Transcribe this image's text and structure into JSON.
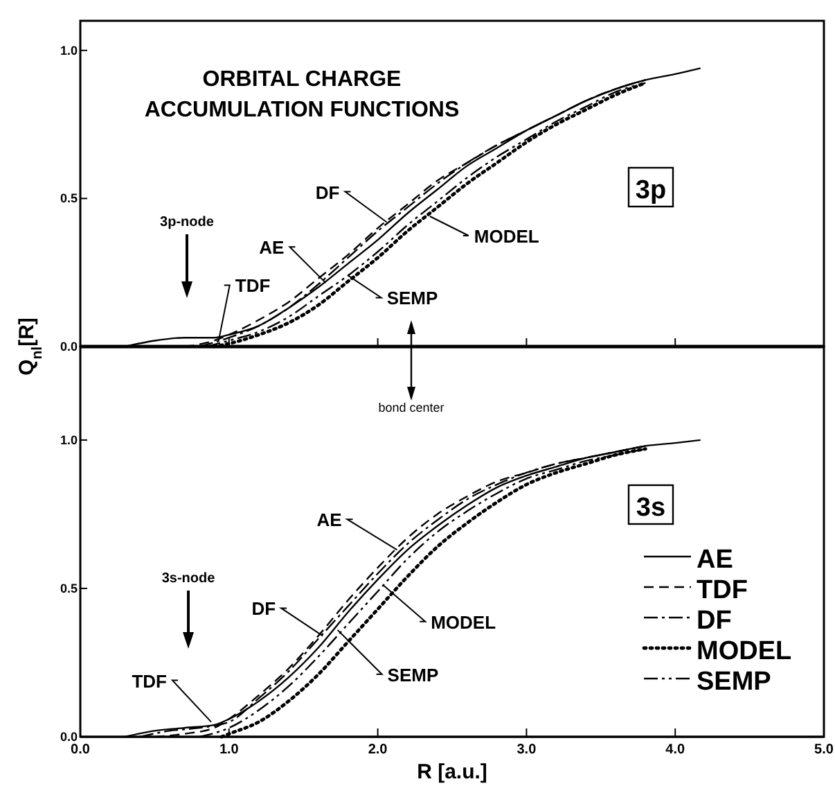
{
  "chart_data": [
    {
      "type": "line",
      "title": "ORBITAL CHARGE ACCUMULATION FUNCTIONS",
      "ylabel": "Q$_{nl}$[R]",
      "xlim": [
        0,
        5
      ],
      "ylim": [
        0,
        1.1
      ],
      "xticks": [
        {
          "value": 0,
          "label": null
        },
        {
          "value": 1,
          "label": null
        },
        {
          "value": 2,
          "label": null
        },
        {
          "value": 3,
          "label": null
        },
        {
          "value": 4,
          "label": null
        },
        {
          "value": 5,
          "label": null
        }
      ],
      "yticks": [
        {
          "value": 0,
          "label": "0.0"
        },
        {
          "value": 0.5,
          "label": "0.5"
        },
        {
          "value": 1,
          "label": "1.0"
        }
      ],
      "tick_labels": "y",
      "grid": false,
      "legend": false,
      "series": [
        {
          "color": "#000000",
          "line_style": "solid",
          "x": [
            0.3,
            0.5,
            0.7,
            0.9,
            1.0,
            1.2,
            1.4,
            1.6,
            1.8,
            2.0,
            2.2,
            2.4,
            2.6,
            2.8,
            3.0,
            3.2,
            3.4,
            3.6,
            3.8,
            4.0,
            4.17
          ],
          "values": [
            0,
            0.02,
            0.03,
            0.03,
            0.04,
            0.07,
            0.13,
            0.2,
            0.28,
            0.36,
            0.45,
            0.53,
            0.61,
            0.67,
            0.73,
            0.78,
            0.83,
            0.87,
            0.9,
            0.92,
            0.94
          ]
        },
        {
          "color": "#000000",
          "line_style": "dashed",
          "x": [
            0.7,
            0.9,
            1.0,
            1.2,
            1.4,
            1.6,
            1.8,
            2.0,
            2.2,
            2.4,
            2.6,
            2.8,
            3.0,
            3.2,
            3.4,
            3.6,
            3.8
          ],
          "values": [
            0,
            0.02,
            0.04,
            0.09,
            0.15,
            0.23,
            0.31,
            0.4,
            0.48,
            0.56,
            0.62,
            0.68,
            0.73,
            0.78,
            0.83,
            0.87,
            0.9
          ]
        },
        {
          "color": "#000000",
          "line_style": "dashdot",
          "x": [
            0.8,
            1.0,
            1.2,
            1.4,
            1.6,
            1.8,
            2.0,
            2.2,
            2.4,
            2.6,
            2.8,
            3.0,
            3.2,
            3.4,
            3.6,
            3.8
          ],
          "values": [
            0,
            0.03,
            0.07,
            0.13,
            0.21,
            0.3,
            0.39,
            0.47,
            0.55,
            0.62,
            0.68,
            0.73,
            0.78,
            0.83,
            0.87,
            0.9
          ]
        },
        {
          "color": "#000000",
          "line_style": "dotted",
          "x": [
            0.9,
            1.0,
            1.2,
            1.4,
            1.6,
            1.8,
            2.0,
            2.2,
            2.4,
            2.6,
            2.8,
            3.0,
            3.2,
            3.4,
            3.6,
            3.8
          ],
          "values": [
            0,
            0.01,
            0.04,
            0.08,
            0.14,
            0.22,
            0.3,
            0.39,
            0.47,
            0.55,
            0.62,
            0.69,
            0.75,
            0.8,
            0.85,
            0.89
          ]
        },
        {
          "color": "#000000",
          "line_style": "dashdotdot",
          "x": [
            0.85,
            1.0,
            1.2,
            1.4,
            1.6,
            1.8,
            2.0,
            2.2,
            2.4,
            2.6,
            2.8,
            3.0,
            3.2,
            3.4,
            3.6,
            3.8
          ],
          "values": [
            0,
            0.02,
            0.05,
            0.1,
            0.17,
            0.24,
            0.32,
            0.41,
            0.49,
            0.57,
            0.64,
            0.7,
            0.76,
            0.81,
            0.86,
            0.89
          ]
        }
      ],
      "annotations": [
        "3p",
        "3p-node",
        {
          "text": "TDF",
          "x": 0.93,
          "y": 0.02
        },
        {
          "text": "AE",
          "x": 1.65,
          "y": 0.215
        },
        {
          "text": "DF",
          "x": 2.06,
          "y": 0.42
        },
        {
          "text": "SEMP",
          "x": 1.8,
          "y": 0.24
        },
        {
          "text": "MODEL",
          "x": 2.35,
          "y": 0.44
        }
      ]
    },
    {
      "type": "line",
      "xlabel": "R [a.u.]",
      "xlim": [
        0,
        5
      ],
      "ylim": [
        0,
        1.315
      ],
      "xticks": [
        {
          "value": 0,
          "label": "0.0"
        },
        {
          "value": 1,
          "label": "1.0"
        },
        {
          "value": 2,
          "label": "2.0"
        },
        {
          "value": 3,
          "label": "3.0"
        },
        {
          "value": 4,
          "label": "4.0"
        },
        {
          "value": 5,
          "label": "5.0"
        }
      ],
      "yticks": [
        {
          "value": 0,
          "label": "0.0"
        },
        {
          "value": 0.5,
          "label": "0.5"
        },
        {
          "value": 1,
          "label": "1.0"
        }
      ],
      "grid": false,
      "legend": "bottom right",
      "series": [
        {
          "name": "AE",
          "color": "#000000",
          "line_style": "solid",
          "x": [
            0.3,
            0.5,
            0.7,
            0.9,
            1.0,
            1.2,
            1.4,
            1.6,
            1.8,
            2.0,
            2.2,
            2.4,
            2.6,
            2.8,
            3.0,
            3.2,
            3.4,
            3.6,
            3.8,
            4.0,
            4.17
          ],
          "values": [
            0,
            0.02,
            0.03,
            0.04,
            0.06,
            0.12,
            0.2,
            0.3,
            0.42,
            0.53,
            0.63,
            0.71,
            0.78,
            0.84,
            0.88,
            0.91,
            0.94,
            0.96,
            0.98,
            0.99,
            1.0
          ]
        },
        {
          "name": "TDF",
          "color": "#000000",
          "line_style": "dashed",
          "x": [
            0.5,
            0.7,
            0.9,
            1.0,
            1.2,
            1.4,
            1.6,
            1.8,
            2.0,
            2.2,
            2.4,
            2.6,
            2.8,
            3.0,
            3.2,
            3.4,
            3.6,
            3.8
          ],
          "values": [
            0,
            0.01,
            0.03,
            0.06,
            0.14,
            0.23,
            0.34,
            0.46,
            0.57,
            0.67,
            0.75,
            0.81,
            0.86,
            0.89,
            0.92,
            0.94,
            0.96,
            0.98
          ]
        },
        {
          "name": "DF",
          "color": "#000000",
          "line_style": "dashdot",
          "x": [
            0.4,
            0.6,
            0.8,
            1.0,
            1.2,
            1.4,
            1.6,
            1.8,
            2.0,
            2.2,
            2.4,
            2.6,
            2.8,
            3.0,
            3.2,
            3.4,
            3.6,
            3.8
          ],
          "values": [
            0,
            0.02,
            0.03,
            0.05,
            0.13,
            0.22,
            0.33,
            0.44,
            0.55,
            0.65,
            0.73,
            0.8,
            0.85,
            0.89,
            0.92,
            0.94,
            0.96,
            0.98
          ]
        },
        {
          "name": "MODEL",
          "color": "#000000",
          "line_style": "dotted",
          "x": [
            0.95,
            1.0,
            1.2,
            1.4,
            1.6,
            1.8,
            2.0,
            2.2,
            2.4,
            2.6,
            2.8,
            3.0,
            3.2,
            3.4,
            3.6,
            3.8
          ],
          "values": [
            0,
            0.01,
            0.05,
            0.12,
            0.21,
            0.32,
            0.43,
            0.54,
            0.64,
            0.72,
            0.79,
            0.85,
            0.89,
            0.92,
            0.95,
            0.97
          ]
        },
        {
          "name": "SEMP",
          "color": "#000000",
          "line_style": "dashdotdot",
          "x": [
            0.8,
            1.0,
            1.2,
            1.4,
            1.6,
            1.8,
            2.0,
            2.2,
            2.4,
            2.6,
            2.8,
            3.0,
            3.2,
            3.4,
            3.6,
            3.8
          ],
          "values": [
            0,
            0.03,
            0.09,
            0.17,
            0.27,
            0.38,
            0.49,
            0.6,
            0.69,
            0.76,
            0.82,
            0.87,
            0.9,
            0.93,
            0.95,
            0.97
          ]
        }
      ],
      "annotations": [
        "3s",
        "3s-node",
        {
          "text": "TDF",
          "x": 0.88,
          "y": 0.05
        },
        {
          "text": "AE",
          "x": 2.13,
          "y": 0.63
        },
        {
          "text": "DF",
          "x": 1.63,
          "y": 0.34
        },
        {
          "text": "SEMP",
          "x": 1.73,
          "y": 0.36
        },
        {
          "text": "MODEL",
          "x": 2.04,
          "y": 0.51
        },
        "bond center"
      ]
    }
  ]
}
